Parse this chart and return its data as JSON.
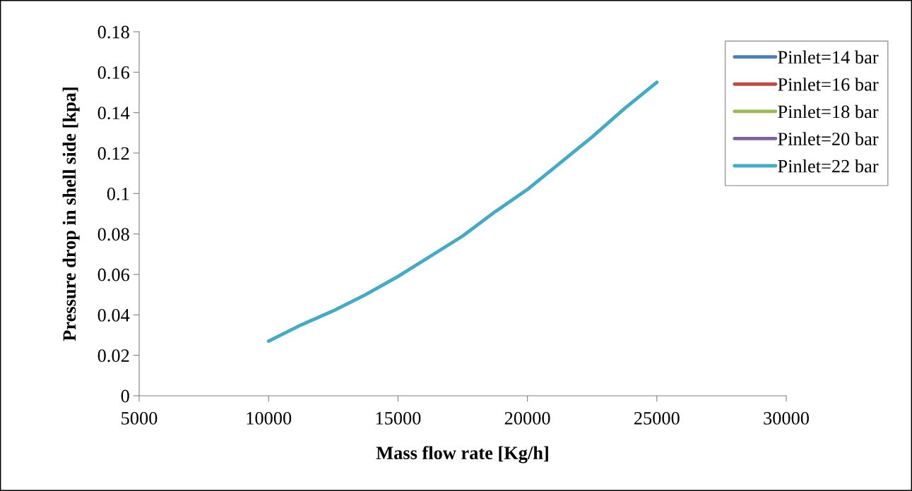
{
  "chart_data": {
    "type": "line",
    "xlabel": "Mass flow rate [Kg/h]",
    "ylabel": "Pressure drop in shell side [kpa]",
    "x": [
      10000,
      11250,
      12500,
      13750,
      15000,
      16250,
      17500,
      18750,
      20000,
      21250,
      22500,
      23750,
      25000
    ],
    "series": [
      {
        "name": "Pinlet=14 bar",
        "color": "#4a7ebb",
        "values": [
          null,
          null,
          null,
          null,
          null,
          null,
          null,
          null,
          null,
          null,
          null,
          null,
          null
        ]
      },
      {
        "name": "Pinlet=16 bar",
        "color": "#be4b48",
        "values": [
          null,
          null,
          null,
          null,
          null,
          null,
          null,
          null,
          null,
          null,
          null,
          null,
          null
        ]
      },
      {
        "name": "Pinlet=18 bar",
        "color": "#98b954",
        "values": [
          null,
          null,
          null,
          null,
          null,
          null,
          null,
          null,
          null,
          null,
          null,
          null,
          null
        ]
      },
      {
        "name": "Pinlet=20 bar",
        "color": "#7d60a0",
        "values": [
          null,
          null,
          null,
          null,
          null,
          null,
          null,
          null,
          null,
          null,
          null,
          null,
          null
        ]
      },
      {
        "name": "Pinlet=22 bar",
        "color": "#46aac5",
        "values": [
          0.027,
          0.035,
          0.042,
          0.05,
          0.059,
          0.069,
          0.079,
          0.091,
          0.102,
          0.115,
          0.128,
          0.142,
          0.155
        ]
      }
    ],
    "xlim": [
      5000,
      30000
    ],
    "xticks": [
      5000,
      10000,
      15000,
      20000,
      25000,
      30000
    ],
    "ylim": [
      0,
      0.18
    ],
    "yticks": [
      0,
      0.02,
      0.04,
      0.06,
      0.08,
      0.1,
      0.12,
      0.14,
      0.16,
      0.18
    ],
    "grid": false,
    "legend": "top right",
    "marker": "none",
    "line_style": "solid"
  }
}
